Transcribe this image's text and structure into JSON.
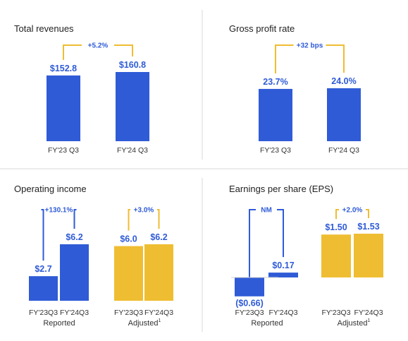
{
  "colors": {
    "blue": "#2f5bd6",
    "gold": "#efbd32",
    "value_text": "#2f5bd6",
    "divider": "#d9d9d9",
    "baseline": "#cfcfcf"
  },
  "chart_data": [
    {
      "type": "bar",
      "title": "Total revenues",
      "categories": [
        "FY'23 Q3",
        "FY'24 Q3"
      ],
      "values": [
        152.8,
        160.8
      ],
      "labels": [
        "$152.8",
        "$160.8"
      ],
      "change": "+5.2%"
    },
    {
      "type": "bar",
      "title": "Gross profit rate",
      "categories": [
        "FY'23 Q3",
        "FY'24 Q3"
      ],
      "values": [
        23.7,
        24.0
      ],
      "labels": [
        "23.7%",
        "24.0%"
      ],
      "change": "+32 bps"
    },
    {
      "type": "bar",
      "title": "Operating income",
      "groups": [
        {
          "name": "Reported",
          "categories": [
            "FY'23Q3",
            "FY'24Q3"
          ],
          "values": [
            2.7,
            6.2
          ],
          "labels": [
            "$2.7",
            "$6.2"
          ],
          "change": "+130.1%",
          "color": "#2f5bd6"
        },
        {
          "name": "Adjusted",
          "categories": [
            "FY'23Q3",
            "FY'24Q3"
          ],
          "values": [
            6.0,
            6.2
          ],
          "labels": [
            "$6.0",
            "$6.2"
          ],
          "change": "+3.0%",
          "color": "#efbd32"
        }
      ]
    },
    {
      "type": "bar",
      "title": "Earnings per share (EPS)",
      "groups": [
        {
          "name": "Reported",
          "categories": [
            "FY'23Q3",
            "FY'24Q3"
          ],
          "values": [
            -0.66,
            0.17
          ],
          "labels": [
            "($0.66)",
            "$0.17"
          ],
          "change": "NM",
          "color": "#2f5bd6"
        },
        {
          "name": "Adjusted",
          "categories": [
            "FY'23Q3",
            "FY'24Q3"
          ],
          "values": [
            1.5,
            1.53
          ],
          "labels": [
            "$1.50",
            "$1.53"
          ],
          "change": "+2.0%",
          "color": "#efbd32"
        }
      ]
    }
  ]
}
